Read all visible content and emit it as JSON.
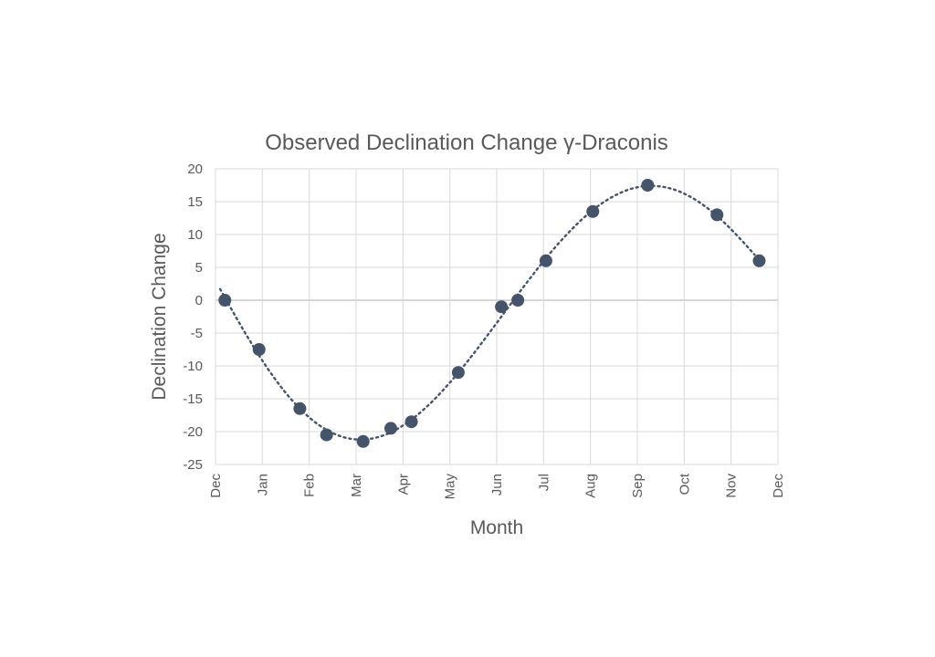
{
  "chart_data": {
    "type": "scatter",
    "title": "Observed Declination Change γ-Draconis",
    "xlabel": "Month",
    "ylabel": "Declination Change",
    "x_tick_labels": [
      "Dec",
      "Jan",
      "Feb",
      "Mar",
      "Apr",
      "May",
      "Jun",
      "Jul",
      "Aug",
      "Sep",
      "Oct",
      "Nov",
      "Dec"
    ],
    "xlim": [
      0,
      12
    ],
    "ylim": [
      -25,
      20
    ],
    "y_ticks": [
      20,
      15,
      10,
      5,
      0,
      -5,
      -10,
      -15,
      -20,
      -25
    ],
    "grid": true,
    "legend": false,
    "marker_color": "#44546a",
    "trendline": {
      "style": "dotted",
      "type": "polynomial",
      "x_range": [
        0.1,
        11.5
      ],
      "color": "#44546a"
    },
    "series": [
      {
        "x": [
          0.2,
          0.93,
          1.8,
          2.37,
          3.15,
          3.74,
          4.18,
          5.18,
          6.1,
          6.45,
          7.05,
          8.05,
          9.22,
          10.7,
          11.6
        ],
        "y": [
          0,
          -7.5,
          -16.5,
          -20.5,
          -21.5,
          -19.5,
          -18.5,
          -11,
          -1,
          0,
          6,
          13.5,
          17.5,
          13,
          6
        ]
      }
    ]
  }
}
